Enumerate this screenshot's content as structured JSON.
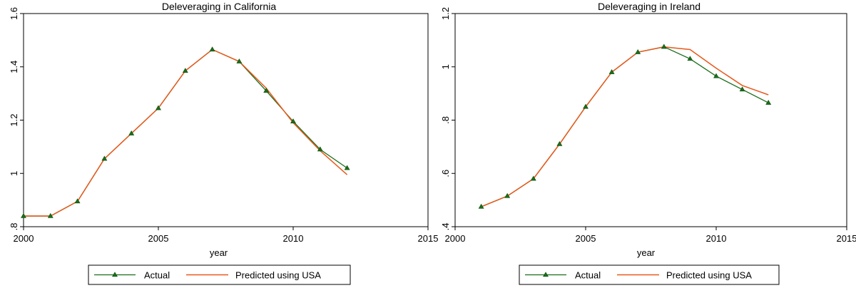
{
  "chart_data": [
    {
      "type": "line",
      "title": "Deleveraging in California",
      "xlabel": "year",
      "ylabel": "",
      "xlim": [
        2000,
        2015
      ],
      "ylim": [
        0.8,
        1.6
      ],
      "xticks": [
        "2000",
        "2005",
        "2010",
        "2015"
      ],
      "yticks": [
        ".8",
        "1",
        "1.2",
        "1.4",
        "1.6"
      ],
      "legend_position": "bottom",
      "series": [
        {
          "name": "Actual",
          "color": "#1a6e1a",
          "marker": "triangle",
          "x": [
            2000,
            2001,
            2002,
            2003,
            2004,
            2005,
            2006,
            2007,
            2008,
            2009,
            2010,
            2011,
            2012
          ],
          "values": [
            0.84,
            0.84,
            0.895,
            1.055,
            1.15,
            1.245,
            1.385,
            1.465,
            1.42,
            1.31,
            1.195,
            1.09,
            1.02
          ]
        },
        {
          "name": "Predicted using USA",
          "color": "#e8591c",
          "marker": "none",
          "x": [
            2000,
            2001,
            2002,
            2003,
            2004,
            2005,
            2006,
            2007,
            2008,
            2009,
            2010,
            2011,
            2012
          ],
          "values": [
            0.84,
            0.84,
            0.895,
            1.055,
            1.15,
            1.245,
            1.385,
            1.465,
            1.42,
            1.32,
            1.19,
            1.085,
            0.995
          ]
        }
      ]
    },
    {
      "type": "line",
      "title": "Deleveraging in Ireland",
      "xlabel": "year",
      "ylabel": "",
      "xlim": [
        2000,
        2015
      ],
      "ylim": [
        0.4,
        1.2
      ],
      "xticks": [
        "2000",
        "2005",
        "2010",
        "2015"
      ],
      "yticks": [
        ".4",
        ".6",
        ".8",
        "1",
        "1.2"
      ],
      "legend_position": "bottom",
      "series": [
        {
          "name": "Actual",
          "color": "#1a6e1a",
          "marker": "triangle",
          "x": [
            2001,
            2002,
            2003,
            2004,
            2005,
            2006,
            2007,
            2008,
            2009,
            2010,
            2011,
            2012
          ],
          "values": [
            0.475,
            0.515,
            0.58,
            0.71,
            0.85,
            0.98,
            1.055,
            1.075,
            1.03,
            0.965,
            0.915,
            0.865
          ]
        },
        {
          "name": "Predicted using USA",
          "color": "#e8591c",
          "marker": "none",
          "x": [
            2001,
            2002,
            2003,
            2004,
            2005,
            2006,
            2007,
            2008,
            2009,
            2010,
            2011,
            2012
          ],
          "values": [
            0.475,
            0.515,
            0.58,
            0.71,
            0.85,
            0.98,
            1.055,
            1.075,
            1.065,
            0.995,
            0.93,
            0.895
          ]
        }
      ]
    }
  ]
}
